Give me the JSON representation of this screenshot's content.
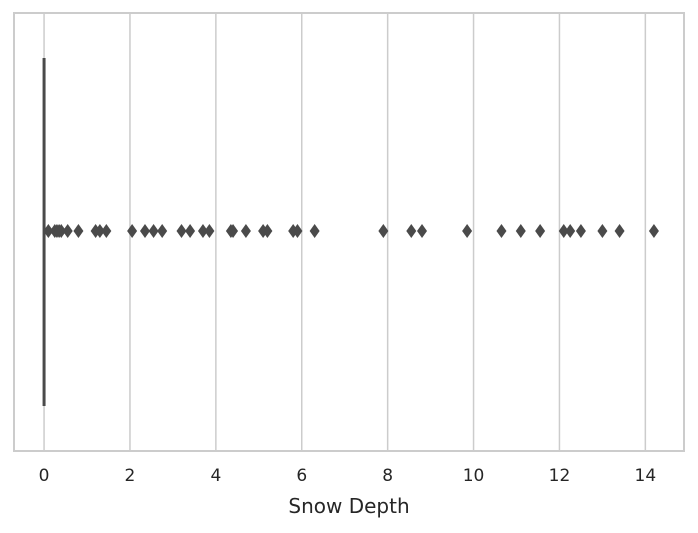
{
  "chart_data": {
    "type": "boxplot",
    "orientation": "horizontal",
    "xlabel": "Snow Depth",
    "ylabel": "",
    "title": "",
    "xlim": [
      -0.7,
      14.9
    ],
    "xticks": [
      0,
      2,
      4,
      6,
      8,
      10,
      12,
      14
    ],
    "grid": "vertical",
    "colors": {
      "box": "#4a4a4a",
      "grid": "#cccccc",
      "frame": "#cccccc",
      "text": "#262626"
    },
    "box": {
      "min": 0,
      "q1": 0,
      "median": 0,
      "q3": 0,
      "max": 0
    },
    "outliers": [
      0.1,
      0.25,
      0.3,
      0.35,
      0.4,
      0.55,
      0.8,
      1.2,
      1.3,
      1.45,
      2.05,
      2.35,
      2.55,
      2.75,
      3.2,
      3.4,
      3.7,
      3.85,
      4.35,
      4.4,
      4.7,
      5.1,
      5.2,
      5.8,
      5.9,
      6.3,
      7.9,
      8.55,
      8.8,
      9.85,
      10.65,
      11.1,
      11.55,
      12.1,
      12.25,
      12.5,
      13.0,
      13.4,
      14.2
    ]
  }
}
